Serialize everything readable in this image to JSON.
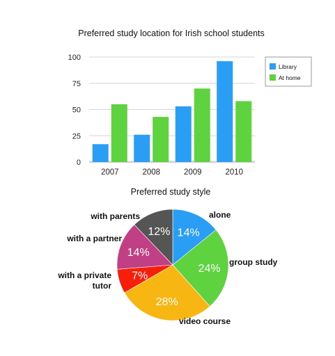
{
  "chart_data": [
    {
      "type": "bar",
      "title": "Preferred study location for Irish school students",
      "xlabel": "",
      "ylabel": "",
      "categories": [
        "2007",
        "2008",
        "2009",
        "2010"
      ],
      "series": [
        {
          "name": "Library",
          "values": [
            17,
            26,
            53,
            96
          ],
          "color": "#2a9df4"
        },
        {
          "name": "At home",
          "values": [
            55,
            43,
            70,
            58
          ],
          "color": "#5fd33f"
        }
      ],
      "ylim": [
        0,
        100
      ],
      "yticks": [
        "0",
        "25",
        "50",
        "75",
        "100"
      ],
      "grid": true,
      "legend": "right"
    },
    {
      "type": "pie",
      "title": "Preferred study style",
      "slices": [
        {
          "label": "alone",
          "value": 14,
          "text": "14%",
          "color": "#2a9df4"
        },
        {
          "label": "group study",
          "value": 24,
          "text": "24%",
          "color": "#5fd33f"
        },
        {
          "label": "video course",
          "value": 28,
          "text": "28%",
          "color": "#f7b611"
        },
        {
          "label": "with a private tutor",
          "lines": [
            "with a private",
            "tutor"
          ],
          "value": 7,
          "text": "7%",
          "color": "#f81e0c"
        },
        {
          "label": "with a partner",
          "value": 14,
          "text": "14%",
          "color": "#c13f85"
        },
        {
          "label": "with parents",
          "value": 12,
          "text": "12%",
          "color": "#555555"
        }
      ]
    }
  ]
}
